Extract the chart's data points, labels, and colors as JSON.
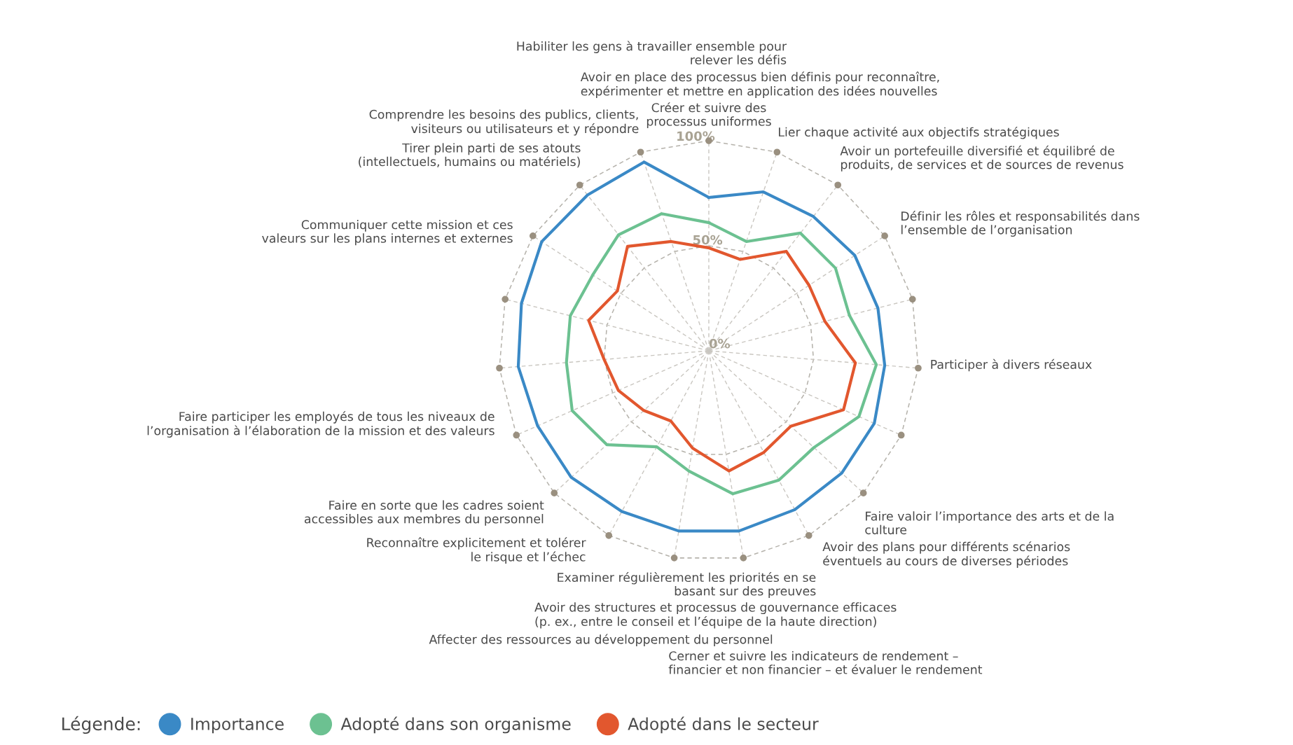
{
  "chart_data": {
    "type": "radar",
    "categories": [
      "Créer et suivre des\nprocessus uniformes",
      "Avoir en place des processus bien définis pour reconnaître,\nexpérimenter et mettre en application des idées nouvelles",
      "Lier chaque activité aux objectifs stratégiques",
      "Avoir un portefeuille diversifié et équilibré de\nproduits, de services et de sources de revenus",
      "Définir les rôles et responsabilités dans\nl’ensemble de l’organisation",
      "Participer à divers réseaux",
      "Faire valoir l’importance des arts et de la\nculture",
      "Avoir des plans pour différents scénarios\néventuels au cours de diverses périodes",
      "Cerner et suivre les indicateurs de rendement –\nfinancier et non financier – et évaluer le rendement",
      "Avoir des structures et processus de gouvernance efficaces\n(p. ex., entre le conseil et l’équipe de la haute direction)",
      "Examiner régulièrement les priorités en se\nbasant sur des preuves",
      "Affecter des ressources au développement du personnel",
      "Reconnaître explicitement et tolérer\nle risque et l’échec",
      "Faire en sorte que les cadres soient\naccessibles aux membres du personnel",
      "Faire participer les employés de tous les niveaux de\nl’organisation à l’élaboration de la mission et des valeurs",
      "Communiquer cette mission et ces\nvaleurs sur les plans internes et externes",
      "Tirer plein parti de ses atouts\n(intellectuels, humains ou matériels)",
      "Comprendre les besoins des publics, clients,\nvisiteurs ou utilisateurs et y répondre",
      "Habiliter les gens à travailler ensemble pour\nrelever les défis"
    ],
    "series": [
      {
        "name": "Importance",
        "color": "#3a89c6",
        "values": [
          73,
          80,
          81,
          83,
          83,
          84,
          86,
          86,
          86,
          87,
          87,
          87,
          89,
          89,
          91,
          92,
          95,
          94,
          95
        ]
      },
      {
        "name": "Adopté dans son organisme",
        "color": "#6cc191",
        "values": [
          61,
          55,
          71,
          72,
          69,
          80,
          78,
          68,
          70,
          69,
          58,
          52,
          66,
          71,
          68,
          68,
          66,
          70,
          69
        ]
      },
      {
        "name": "Adopté dans le secteur",
        "color": "#e2572e",
        "values": [
          49,
          46,
          60,
          57,
          57,
          70,
          70,
          53,
          55,
          58,
          47,
          38,
          42,
          47,
          50,
          59,
          52,
          63,
          55
        ]
      }
    ],
    "ylim": [
      0,
      100
    ],
    "yticks": [
      {
        "value": 0,
        "label": "0%"
      },
      {
        "value": 50,
        "label": "50%"
      },
      {
        "value": 100,
        "label": "100%"
      }
    ],
    "grid": true,
    "legend": "bottom",
    "legend_title": "Légende:",
    "marker": "none",
    "line_style": "solid"
  }
}
